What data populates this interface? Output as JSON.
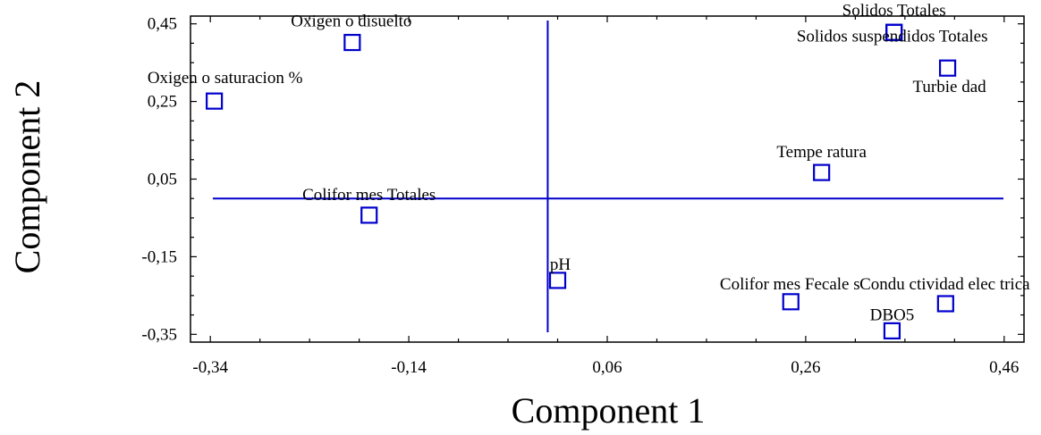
{
  "chart_data": {
    "type": "scatter",
    "xlabel": "Component 1",
    "ylabel": "Component 2",
    "xlim": [
      -0.36,
      0.48
    ],
    "ylim": [
      -0.37,
      0.47
    ],
    "x_ticks": [
      "-0,34",
      "-0,14",
      "0,06",
      "0,26",
      "0,46"
    ],
    "x_tick_values": [
      -0.34,
      -0.14,
      0.06,
      0.26,
      0.46
    ],
    "y_ticks": [
      "0,45",
      "0,25",
      "0,05",
      "-0,15",
      "-0,35"
    ],
    "y_tick_values": [
      0.45,
      0.25,
      0.05,
      -0.15,
      -0.35
    ],
    "reference_lines": {
      "x": 0.0,
      "y": 0.0
    },
    "grid": false,
    "marker_color": "#0000cc",
    "points": [
      {
        "label": "Solidos  Totales",
        "x": 0.349,
        "y": 0.428
      },
      {
        "label": "Solidos  suspendidos Totales",
        "x": 0.349,
        "y": 0.428
      },
      {
        "label": "Oxigen o disuelto",
        "x": -0.197,
        "y": 0.402
      },
      {
        "label": "Turbie dad",
        "x": 0.403,
        "y": 0.336
      },
      {
        "label": "Oxigen o saturacion %",
        "x": -0.336,
        "y": 0.251
      },
      {
        "label": "Tempe ratura",
        "x": 0.276,
        "y": 0.067
      },
      {
        "label": "Colifor mes Totales",
        "x": -0.18,
        "y": -0.043
      },
      {
        "label": "pH",
        "x": 0.01,
        "y": -0.211
      },
      {
        "label": "Colifor mes Fecale s",
        "x": 0.245,
        "y": -0.266
      },
      {
        "label": "Condu ctividad elec trica",
        "x": 0.401,
        "y": -0.271
      },
      {
        "label": "DBO5",
        "x": 0.347,
        "y": -0.341
      }
    ]
  }
}
